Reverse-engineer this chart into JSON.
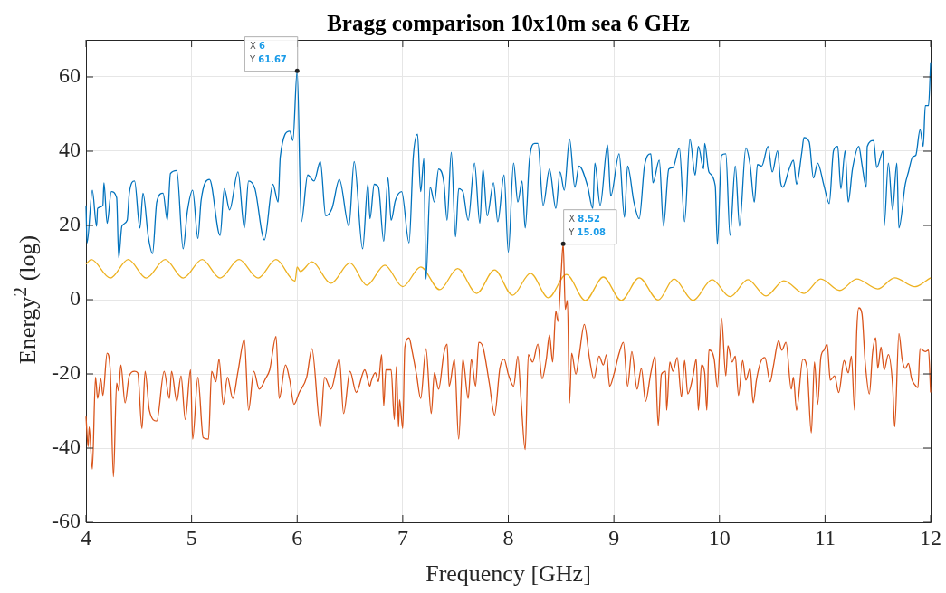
{
  "chart_data": {
    "type": "line",
    "title": "Bragg comparison 10x10m sea 6 GHz",
    "xlabel": "Frequency [GHz]",
    "ylabel": "Energy$^{2}$ (log)",
    "xlim": [
      4,
      12
    ],
    "xticks": [
      4,
      5,
      6,
      7,
      8,
      9,
      10,
      11,
      12
    ],
    "ylim": [
      -60,
      70
    ],
    "yticks": [
      -60,
      -40,
      -20,
      0,
      20,
      40,
      60
    ],
    "grid": true,
    "legend": false,
    "marker": "none",
    "line_style": "solid",
    "annotations": [
      {
        "text": "X 6\nY 61.67",
        "x": 6,
        "y": 61.67
      },
      {
        "text": "X 8.52\nY 15.08",
        "x": 8.52,
        "y": 15.08
      }
    ],
    "series": [
      {
        "color": "#0072bd",
        "x": [
          4.0,
          4.01,
          4.06,
          4.1,
          4.11,
          4.16,
          4.17,
          4.2,
          4.24,
          4.29,
          4.31,
          4.34,
          4.39,
          4.41,
          4.46,
          4.51,
          4.54,
          4.59,
          4.63,
          4.67,
          4.73,
          4.77,
          4.8,
          4.86,
          4.92,
          4.96,
          5.01,
          5.06,
          5.09,
          5.17,
          5.27,
          5.31,
          5.36,
          5.44,
          5.5,
          5.54,
          5.6,
          5.69,
          5.77,
          5.82,
          5.84,
          5.93,
          5.96,
          6.0,
          6.04,
          6.1,
          6.16,
          6.22,
          6.27,
          6.33,
          6.4,
          6.49,
          6.54,
          6.62,
          6.67,
          6.69,
          6.73,
          6.77,
          6.82,
          6.86,
          6.89,
          6.93,
          6.99,
          7.06,
          7.1,
          7.14,
          7.17,
          7.2,
          7.22,
          7.26,
          7.3,
          7.34,
          7.39,
          7.42,
          7.46,
          7.5,
          7.53,
          7.57,
          7.62,
          7.68,
          7.73,
          7.76,
          7.8,
          7.86,
          7.9,
          7.96,
          8.0,
          8.05,
          8.09,
          8.13,
          8.16,
          8.2,
          8.25,
          8.28,
          8.33,
          8.39,
          8.45,
          8.49,
          8.53,
          8.58,
          8.63,
          8.67,
          8.75,
          8.8,
          8.82,
          8.87,
          8.94,
          8.97,
          9.05,
          9.1,
          9.13,
          9.19,
          9.24,
          9.29,
          9.35,
          9.37,
          9.43,
          9.47,
          9.52,
          9.56,
          9.62,
          9.67,
          9.72,
          9.77,
          9.8,
          9.85,
          9.86,
          9.9,
          9.96,
          9.98,
          10.02,
          10.06,
          10.1,
          10.15,
          10.19,
          10.25,
          10.29,
          10.33,
          10.36,
          10.4,
          10.46,
          10.5,
          10.55,
          10.58,
          10.6,
          10.66,
          10.7,
          10.73,
          10.78,
          10.8,
          10.85,
          10.89,
          10.93,
          10.99,
          11.04,
          11.08,
          11.12,
          11.15,
          11.19,
          11.22,
          11.26,
          11.32,
          11.35,
          11.39,
          11.4,
          11.46,
          11.49,
          11.55,
          11.56,
          11.6,
          11.64,
          11.68,
          11.7,
          11.76,
          11.79,
          11.83,
          11.86,
          11.9,
          11.93,
          11.95,
          11.98,
          12.0
        ],
        "values": [
          25.4,
          15.3,
          29.5,
          19.8,
          24.6,
          25.4,
          31.5,
          20.6,
          29.1,
          27.5,
          11.2,
          19.8,
          21.4,
          28.7,
          32.0,
          19.3,
          28.7,
          16.9,
          12.4,
          26.3,
          28.7,
          21.4,
          34.0,
          34.8,
          13.7,
          23.8,
          29.5,
          16.5,
          26.7,
          32.4,
          17.3,
          29.9,
          24.2,
          34.4,
          19.3,
          32.0,
          29.9,
          16.1,
          31.1,
          26.3,
          38.5,
          45.4,
          42.9,
          61.67,
          21.0,
          33.6,
          32.0,
          37.2,
          22.6,
          24.6,
          32.4,
          19.8,
          37.2,
          13.7,
          31.1,
          21.8,
          31.1,
          30.3,
          15.7,
          32.8,
          21.4,
          26.7,
          29.1,
          15.3,
          38.5,
          44.6,
          29.1,
          38.0,
          5.5,
          30.3,
          26.3,
          35.2,
          31.5,
          21.4,
          39.7,
          16.9,
          29.9,
          29.1,
          21.4,
          36.8,
          20.6,
          35.2,
          22.6,
          31.5,
          21.0,
          33.6,
          12.8,
          36.8,
          26.3,
          32.0,
          19.3,
          37.6,
          42.1,
          42.1,
          25.4,
          35.2,
          24.6,
          34.4,
          29.5,
          43.3,
          30.3,
          36.0,
          30.7,
          24.6,
          36.8,
          25.4,
          41.7,
          27.9,
          39.3,
          22.2,
          36.0,
          26.3,
          21.8,
          36.0,
          39.3,
          31.5,
          37.6,
          19.8,
          35.2,
          35.6,
          40.9,
          21.0,
          43.3,
          33.6,
          41.3,
          35.2,
          42.1,
          34.4,
          30.7,
          14.9,
          38.9,
          39.3,
          17.3,
          36.0,
          19.8,
          40.9,
          36.4,
          26.3,
          36.4,
          36.0,
          41.3,
          34.4,
          40.1,
          31.5,
          30.3,
          35.2,
          37.6,
          31.1,
          39.7,
          43.7,
          42.5,
          32.8,
          36.8,
          30.7,
          25.9,
          40.1,
          41.3,
          29.9,
          40.1,
          26.3,
          35.2,
          41.3,
          36.4,
          30.3,
          41.3,
          42.9,
          35.6,
          40.1,
          19.8,
          36.8,
          24.2,
          36.8,
          19.3,
          31.1,
          34.4,
          38.5,
          38.9,
          45.8,
          41.3,
          52.3,
          52.3,
          63.7
        ]
      },
      {
        "color": "#d95319",
        "x": [
          4.0,
          4.02,
          4.03,
          4.06,
          4.09,
          4.11,
          4.14,
          4.16,
          4.2,
          4.23,
          4.26,
          4.29,
          4.31,
          4.33,
          4.37,
          4.41,
          4.46,
          4.49,
          4.53,
          4.56,
          4.6,
          4.67,
          4.74,
          4.79,
          4.81,
          4.86,
          4.9,
          4.94,
          4.99,
          5.01,
          5.06,
          5.11,
          5.16,
          5.19,
          5.23,
          5.26,
          5.3,
          5.34,
          5.39,
          5.44,
          5.5,
          5.54,
          5.59,
          5.64,
          5.7,
          5.74,
          5.8,
          5.83,
          5.89,
          5.93,
          5.97,
          6.02,
          6.09,
          6.14,
          6.22,
          6.26,
          6.32,
          6.4,
          6.44,
          6.5,
          6.56,
          6.64,
          6.69,
          6.7,
          6.74,
          6.77,
          6.8,
          6.82,
          6.84,
          6.89,
          6.92,
          6.94,
          6.96,
          6.97,
          7.0,
          7.02,
          7.06,
          7.09,
          7.13,
          7.17,
          7.22,
          7.27,
          7.3,
          7.34,
          7.39,
          7.42,
          7.44,
          7.49,
          7.53,
          7.57,
          7.62,
          7.65,
          7.69,
          7.72,
          7.76,
          7.82,
          7.87,
          7.92,
          7.96,
          8.0,
          8.05,
          8.09,
          8.12,
          8.16,
          8.19,
          8.23,
          8.28,
          8.32,
          8.36,
          8.39,
          8.42,
          8.45,
          8.47,
          8.5,
          8.52,
          8.54,
          8.56,
          8.58,
          8.6,
          8.64,
          8.67,
          8.72,
          8.77,
          8.81,
          8.86,
          8.9,
          8.93,
          8.96,
          9.0,
          9.05,
          9.09,
          9.13,
          9.17,
          9.22,
          9.26,
          9.3,
          9.35,
          9.39,
          9.42,
          9.45,
          9.49,
          9.5,
          9.53,
          9.56,
          9.6,
          9.64,
          9.67,
          9.7,
          9.75,
          9.78,
          9.8,
          9.83,
          9.86,
          9.88,
          9.9,
          9.95,
          9.98,
          10.02,
          10.06,
          10.08,
          10.12,
          10.15,
          10.18,
          10.22,
          10.25,
          10.29,
          10.32,
          10.35,
          10.39,
          10.43,
          10.48,
          10.51,
          10.56,
          10.59,
          10.63,
          10.68,
          10.7,
          10.73,
          10.79,
          10.83,
          10.87,
          10.9,
          10.93,
          10.96,
          10.99,
          11.02,
          11.05,
          11.09,
          11.13,
          11.18,
          11.22,
          11.25,
          11.28,
          11.3,
          11.32,
          11.35,
          11.38,
          11.42,
          11.45,
          11.48,
          11.5,
          11.53,
          11.56,
          11.6,
          11.64,
          11.66,
          11.7,
          11.73,
          11.76,
          11.79,
          11.82,
          11.85,
          11.88,
          11.9,
          11.95,
          11.98,
          12.0
        ],
        "values": [
          -31.5,
          -39.6,
          -34.3,
          -45.7,
          -20.9,
          -26.6,
          -21.3,
          -25.8,
          -14.4,
          -19.3,
          -47.7,
          -22.5,
          -24.6,
          -17.6,
          -27.8,
          -20.5,
          -19.3,
          -19.7,
          -34.7,
          -19.3,
          -29.8,
          -32.7,
          -19.3,
          -26.6,
          -19.3,
          -27.4,
          -20.5,
          -32.3,
          -18.9,
          -37.6,
          -20.9,
          -37.2,
          -37.6,
          -19.3,
          -22.1,
          -16.0,
          -28.2,
          -20.9,
          -26.6,
          -19.3,
          -10.7,
          -29.8,
          -19.3,
          -24.1,
          -21.3,
          -18.9,
          -9.9,
          -26.6,
          -17.6,
          -21.7,
          -28.2,
          -25.0,
          -20.9,
          -13.2,
          -34.3,
          -20.9,
          -24.1,
          -16.0,
          -30.7,
          -19.3,
          -25.0,
          -18.9,
          -23.3,
          -22.1,
          -19.7,
          -22.1,
          -14.8,
          -28.6,
          -18.9,
          -18.9,
          -32.3,
          -18.0,
          -34.3,
          -27.0,
          -34.7,
          -12.8,
          -10.3,
          -14.0,
          -20.1,
          -26.6,
          -13.2,
          -30.7,
          -19.7,
          -24.1,
          -14.4,
          -12.0,
          -23.3,
          -16.0,
          -37.6,
          -16.0,
          -26.6,
          -16.0,
          -23.3,
          -11.5,
          -12.8,
          -22.5,
          -31.1,
          -18.5,
          -16.0,
          -20.1,
          -23.3,
          -15.2,
          -26.6,
          -40.4,
          -14.8,
          -16.8,
          -12.0,
          -21.3,
          -16.0,
          -9.5,
          -16.8,
          -3.0,
          -5.9,
          6.8,
          15.08,
          -2.6,
          -0.2,
          -27.8,
          -14.4,
          -20.1,
          -15.2,
          -6.7,
          -16.0,
          -21.3,
          -15.2,
          -17.6,
          -14.8,
          -23.3,
          -20.1,
          -14.4,
          -11.5,
          -23.3,
          -14.0,
          -24.1,
          -18.5,
          -27.4,
          -19.7,
          -15.2,
          -33.9,
          -20.1,
          -19.3,
          -29.8,
          -16.8,
          -19.3,
          -15.6,
          -26.2,
          -16.4,
          -25.4,
          -20.5,
          -16.0,
          -29.8,
          -17.6,
          -19.7,
          -29.8,
          -13.6,
          -16.0,
          -23.7,
          -5.0,
          -20.5,
          -12.4,
          -16.8,
          -15.2,
          -25.8,
          -16.4,
          -21.7,
          -18.5,
          -27.8,
          -21.7,
          -16.8,
          -15.6,
          -22.1,
          -18.0,
          -11.1,
          -13.6,
          -11.5,
          -24.1,
          -20.9,
          -29.8,
          -16.0,
          -18.5,
          -35.9,
          -16.8,
          -28.2,
          -15.6,
          -13.6,
          -12.0,
          -21.7,
          -20.5,
          -25.0,
          -16.4,
          -19.7,
          -15.2,
          -29.8,
          -8.7,
          -2.2,
          -3.8,
          -16.8,
          -25.4,
          -14.4,
          -10.3,
          -18.5,
          -12.8,
          -18.9,
          -14.8,
          -22.9,
          -34.3,
          -9.1,
          -16.0,
          -18.5,
          -17.2,
          -21.3,
          -22.9,
          -23.7,
          -13.2,
          -14.0,
          -13.6,
          -25.0
        ]
      },
      {
        "color": "#edb120",
        "x": [
          4.0,
          4.05,
          4.23,
          4.4,
          4.57,
          4.75,
          4.92,
          5.1,
          5.27,
          5.45,
          5.63,
          5.8,
          5.98,
          6.0,
          6.03,
          6.14,
          6.32,
          6.5,
          6.66,
          6.83,
          7.0,
          7.17,
          7.35,
          7.52,
          7.7,
          7.87,
          8.04,
          8.21,
          8.38,
          8.55,
          8.73,
          8.9,
          9.07,
          9.24,
          9.42,
          9.57,
          9.75,
          9.93,
          10.1,
          10.27,
          10.44,
          10.61,
          10.8,
          10.96,
          11.14,
          11.3,
          11.5,
          11.66,
          11.85,
          12.0
        ],
        "values": [
          9.6,
          10.8,
          5.8,
          10.8,
          5.8,
          10.8,
          5.8,
          10.8,
          5.8,
          10.8,
          5.8,
          10.8,
          5.0,
          8.8,
          7.6,
          10.2,
          4.4,
          9.9,
          3.9,
          9.3,
          3.5,
          8.8,
          2.7,
          8.4,
          1.7,
          8.0,
          1.2,
          7.1,
          0.5,
          6.8,
          -0.2,
          6.1,
          -0.2,
          5.9,
          -0.1,
          5.6,
          -0.2,
          5.4,
          0.8,
          5.4,
          1.0,
          5.1,
          1.7,
          5.6,
          2.5,
          5.6,
          2.9,
          5.9,
          3.5,
          5.9
        ]
      }
    ]
  }
}
